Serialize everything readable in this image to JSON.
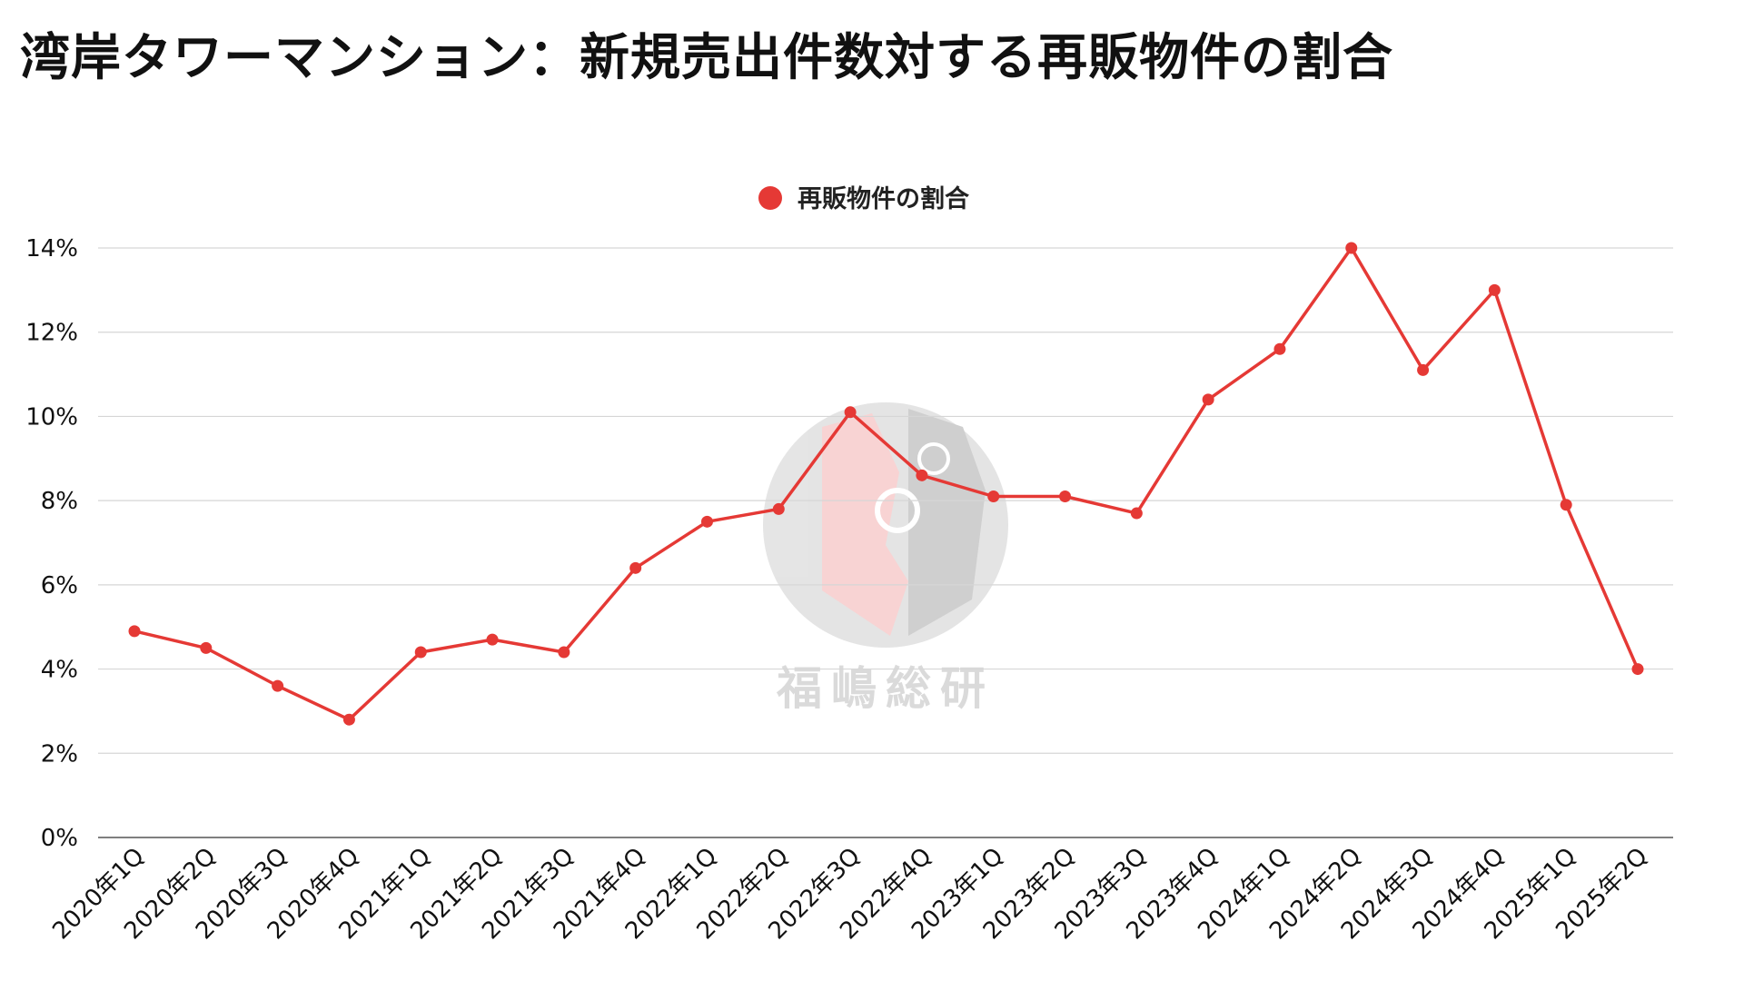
{
  "chart_data": {
    "type": "line",
    "title": "湾岸タワーマンション：新規売出件数対する再販物件の割合",
    "categories": [
      "2020年1Q",
      "2020年2Q",
      "2020年3Q",
      "2020年4Q",
      "2021年1Q",
      "2021年2Q",
      "2021年3Q",
      "2021年4Q",
      "2022年1Q",
      "2022年2Q",
      "2022年3Q",
      "2022年4Q",
      "2023年1Q",
      "2023年2Q",
      "2023年3Q",
      "2023年4Q",
      "2024年1Q",
      "2024年2Q",
      "2024年3Q",
      "2024年4Q",
      "2025年1Q",
      "2025年2Q"
    ],
    "series": [
      {
        "name": "再販物件の割合",
        "color": "#e53935",
        "values": [
          4.9,
          4.5,
          3.6,
          2.8,
          4.4,
          4.7,
          4.4,
          6.4,
          7.5,
          7.8,
          10.1,
          8.6,
          8.1,
          8.1,
          7.7,
          10.4,
          11.6,
          14.0,
          11.1,
          13.0,
          7.9,
          4.0
        ]
      }
    ],
    "ylim": [
      0,
      14
    ],
    "yticks": [
      0,
      2,
      4,
      6,
      8,
      10,
      12,
      14
    ],
    "ytick_suffix": "%",
    "xlabel": "",
    "ylabel": "",
    "grid": true,
    "legend_position": "top-center"
  },
  "watermark": {
    "text": "福嶋総研",
    "color": "#bdbdbd",
    "accent": "#f2b8b8"
  }
}
